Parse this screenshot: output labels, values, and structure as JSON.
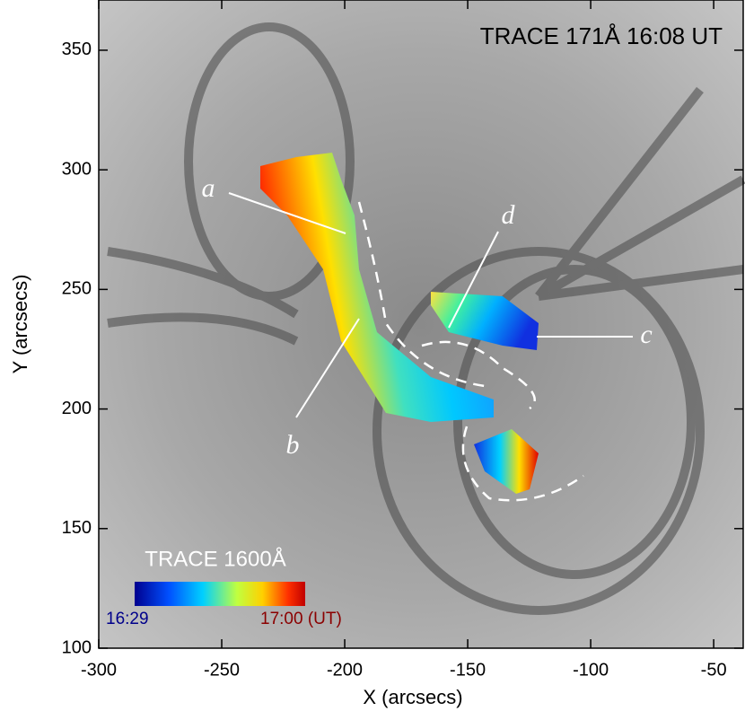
{
  "chart_data": {
    "type": "image",
    "title": "TRACE 171Å 16:08 UT",
    "xlabel": "X (arcsecs)",
    "ylabel": "Y (arcsecs)",
    "xlim": [
      -300,
      -38
    ],
    "ylim": [
      100,
      371
    ],
    "xticks": [
      -300,
      -250,
      -200,
      -150,
      -100,
      -50
    ],
    "yticks": [
      100,
      150,
      200,
      250,
      300,
      350
    ],
    "annotations": [
      "a",
      "b",
      "c",
      "d"
    ],
    "colorbar": {
      "label": "TRACE 1600Å",
      "tick_labels": [
        "16:29",
        "17:00 (UT)"
      ]
    }
  }
}
